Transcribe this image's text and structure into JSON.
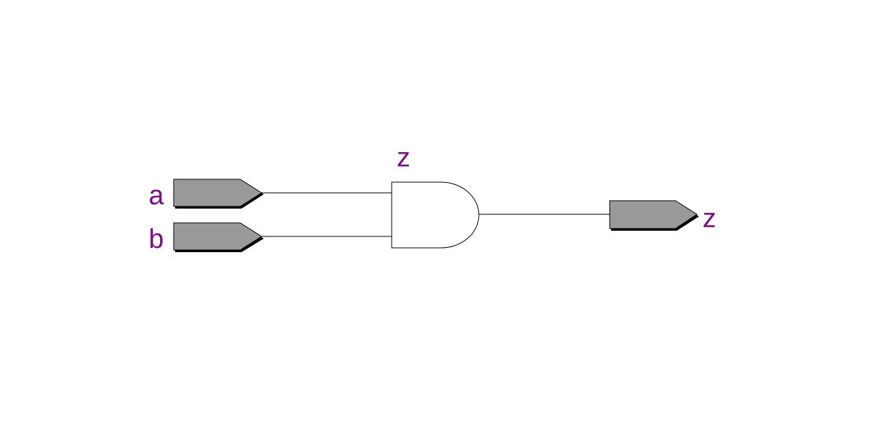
{
  "schematic": {
    "inputs": [
      {
        "label": "a"
      },
      {
        "label": "b"
      }
    ],
    "gate": {
      "type": "and-gate",
      "label": "z"
    },
    "output": {
      "label": "z"
    }
  },
  "colors": {
    "background": "#ffffff",
    "port_fill": "#999999",
    "port_shadow": "#000000",
    "wire": "#000000",
    "gate_fill": "#ffffff",
    "gate_stroke": "#000000",
    "label": "#7b0f86"
  }
}
